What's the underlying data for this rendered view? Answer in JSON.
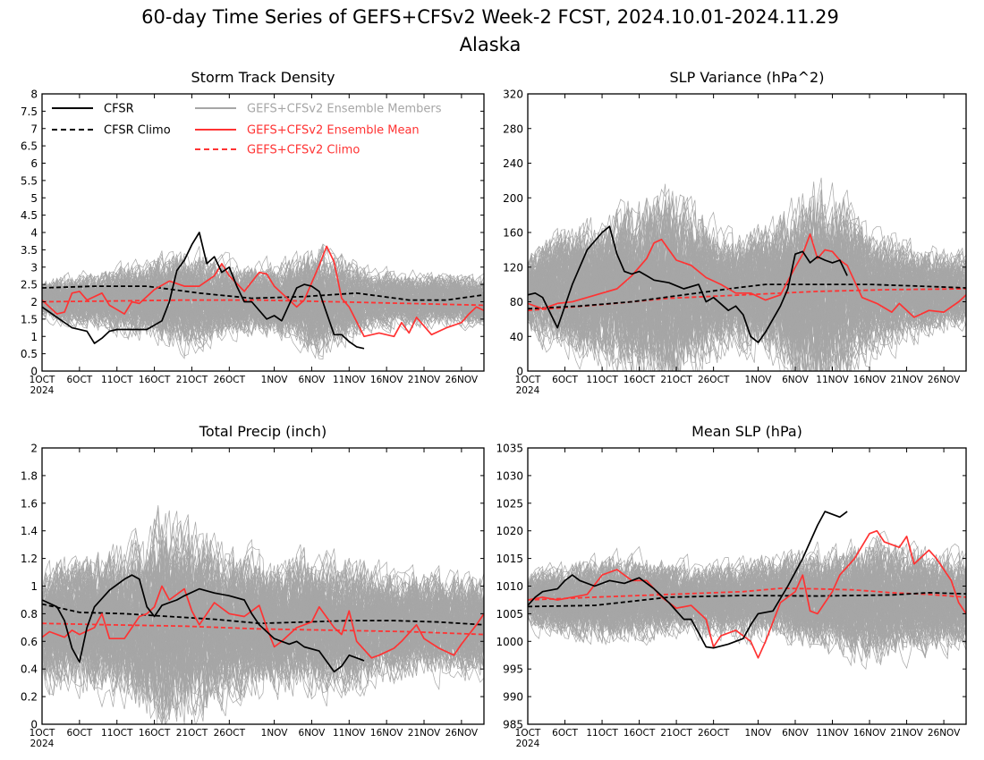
{
  "page": {
    "title": "60-day Time Series of GEFS+CFSv2 Week-2 FCST, 2024.10.01-2024.11.29",
    "subtitle": "Alaska"
  },
  "legend": [
    {
      "label": "CFSR",
      "color": "#000000",
      "dashed": false
    },
    {
      "label": "CFSR Climo",
      "color": "#000000",
      "dashed": true
    },
    {
      "label": "GEFS+CFSv2 Ensemble Members",
      "color": "#a6a6a6",
      "dashed": false
    },
    {
      "label": "GEFS+CFSv2 Ensemble Mean",
      "color": "#ff3333",
      "dashed": false
    },
    {
      "label": "GEFS+CFSv2 Climo",
      "color": "#ff3333",
      "dashed": true
    }
  ],
  "x_ticks": {
    "days": [
      1,
      6,
      11,
      16,
      21,
      26,
      32,
      37,
      42,
      47,
      52,
      57
    ],
    "labels": [
      "1OCT",
      "6OCT",
      "11OCT",
      "16OCT",
      "21OCT",
      "26OCT",
      "1NOV",
      "6NOV",
      "11NOV",
      "16NOV",
      "21NOV",
      "26NOV"
    ],
    "year_label": "2024"
  },
  "chart_data": [
    {
      "type": "line",
      "title": "Storm Track Density",
      "x_unit": "day index (1 = 1OCT 2024, 60 = 29NOV 2024)",
      "ylim": [
        0,
        8
      ],
      "yticks": [
        0,
        0.5,
        1,
        1.5,
        2,
        2.5,
        3,
        3.5,
        4,
        4.5,
        5,
        5.5,
        6,
        6.5,
        7,
        7.5,
        8
      ],
      "ytick_labels": [
        "0",
        "0.5",
        "1",
        "1.5",
        "2",
        "2.5",
        "3",
        "3.5",
        "4",
        "4.5",
        "5",
        "5.5",
        "6",
        "6.5",
        "7",
        "7.5",
        "8"
      ],
      "ensemble": {
        "center": 2.05,
        "spread": 1.3,
        "amp": [
          [
            1,
            0.7
          ],
          [
            10,
            1.0
          ],
          [
            20,
            1.6
          ],
          [
            27,
            1.1
          ],
          [
            33,
            1.2
          ],
          [
            38,
            1.8
          ],
          [
            45,
            0.9
          ],
          [
            60,
            0.8
          ]
        ]
      },
      "series": [
        {
          "name": "CFSR",
          "x": [
            1,
            3,
            5,
            7,
            8,
            9,
            10,
            11,
            13,
            15,
            17,
            18,
            19,
            20,
            21,
            22,
            23,
            24,
            25,
            26,
            27,
            28,
            29,
            31,
            32,
            33,
            35,
            36,
            37,
            38,
            40,
            41,
            42,
            43,
            44
          ],
          "values": [
            1.85,
            1.55,
            1.25,
            1.15,
            0.8,
            0.95,
            1.15,
            1.2,
            1.2,
            1.2,
            1.45,
            2.0,
            2.9,
            3.2,
            3.65,
            4.0,
            3.1,
            3.3,
            2.85,
            3.0,
            2.45,
            2.0,
            2.0,
            1.5,
            1.6,
            1.45,
            2.4,
            2.5,
            2.45,
            2.3,
            1.05,
            1.05,
            0.85,
            0.7,
            0.65
          ]
        },
        {
          "name": "CFSR Climo",
          "x": [
            1,
            8,
            15,
            22,
            29,
            36,
            43,
            50,
            55,
            60
          ],
          "values": [
            2.4,
            2.45,
            2.45,
            2.25,
            2.1,
            2.15,
            2.25,
            2.05,
            2.05,
            2.2
          ]
        },
        {
          "name": "GEFS+CFSv2 Ensemble Mean",
          "x": [
            1,
            3,
            4,
            5,
            6,
            7,
            9,
            10,
            12,
            13,
            14,
            16,
            18,
            20,
            22,
            24,
            25,
            26,
            28,
            30,
            31,
            32,
            34,
            35,
            36,
            38,
            39,
            40,
            41,
            42,
            44,
            46,
            48,
            49,
            50,
            51,
            53,
            55,
            57,
            58,
            59,
            60
          ],
          "values": [
            2.05,
            1.65,
            1.7,
            2.25,
            2.3,
            2.05,
            2.25,
            1.9,
            1.65,
            2.0,
            1.95,
            2.35,
            2.6,
            2.45,
            2.45,
            2.75,
            3.1,
            2.75,
            2.3,
            2.85,
            2.8,
            2.45,
            2.05,
            1.85,
            2.05,
            3.05,
            3.6,
            3.15,
            2.1,
            1.85,
            1.0,
            1.1,
            1.0,
            1.4,
            1.1,
            1.55,
            1.05,
            1.25,
            1.4,
            1.65,
            1.85,
            1.75
          ]
        },
        {
          "name": "GEFS+CFSv2 Climo",
          "x": [
            1,
            10,
            20,
            30,
            40,
            50,
            60
          ],
          "values": [
            2.0,
            2.02,
            2.05,
            2.05,
            2.0,
            1.95,
            1.9
          ]
        }
      ]
    },
    {
      "type": "line",
      "title": "SLP Variance (hPa^2)",
      "x_unit": "day index (1 = 1OCT 2024, 60 = 29NOV 2024)",
      "ylim": [
        0,
        320
      ],
      "yticks": [
        0,
        40,
        80,
        120,
        160,
        200,
        240,
        280,
        320
      ],
      "ytick_labels": [
        "0",
        "40",
        "80",
        "120",
        "160",
        "200",
        "240",
        "280",
        "320"
      ],
      "ensemble": {
        "center": 92,
        "spread": 1.3,
        "amp": [
          [
            1,
            60
          ],
          [
            10,
            90
          ],
          [
            20,
            130
          ],
          [
            28,
            70
          ],
          [
            34,
            90
          ],
          [
            40,
            150
          ],
          [
            47,
            75
          ],
          [
            60,
            45
          ]
        ]
      },
      "series": [
        {
          "name": "CFSR",
          "x": [
            1,
            2,
            3,
            5,
            7,
            9,
            11,
            12,
            13,
            14,
            15,
            16,
            17,
            18,
            20,
            22,
            24,
            25,
            26,
            28,
            29,
            30,
            31,
            32,
            33,
            35,
            36,
            37,
            38,
            39,
            40,
            41,
            42,
            43,
            44
          ],
          "values": [
            88,
            90,
            85,
            50,
            100,
            140,
            160,
            167,
            135,
            115,
            112,
            115,
            110,
            105,
            102,
            95,
            100,
            80,
            85,
            70,
            75,
            65,
            40,
            33,
            45,
            75,
            95,
            135,
            138,
            125,
            132,
            128,
            125,
            128,
            110
          ]
        },
        {
          "name": "CFSR Climo",
          "x": [
            1,
            8,
            15,
            22,
            29,
            33,
            40,
            47,
            54,
            60
          ],
          "values": [
            72,
            75,
            80,
            88,
            96,
            100,
            100,
            100,
            98,
            96
          ]
        },
        {
          "name": "GEFS+CFSv2 Ensemble Mean",
          "x": [
            1,
            3,
            5,
            7,
            9,
            11,
            13,
            15,
            17,
            18,
            19,
            21,
            23,
            25,
            27,
            29,
            31,
            33,
            35,
            37,
            38,
            39,
            40,
            41,
            42,
            43,
            44,
            46,
            48,
            50,
            51,
            53,
            55,
            57,
            59,
            60
          ],
          "values": [
            78,
            72,
            78,
            80,
            85,
            90,
            95,
            110,
            130,
            148,
            152,
            128,
            122,
            108,
            100,
            90,
            90,
            82,
            88,
            120,
            135,
            158,
            130,
            140,
            138,
            128,
            122,
            85,
            78,
            68,
            78,
            62,
            70,
            68,
            80,
            88
          ]
        },
        {
          "name": "GEFS+CFSv2 Climo",
          "x": [
            1,
            10,
            20,
            30,
            40,
            50,
            60
          ],
          "values": [
            70,
            76,
            84,
            88,
            92,
            94,
            95
          ]
        }
      ]
    },
    {
      "type": "line",
      "title": "Total Precip (inch)",
      "x_unit": "day index (1 = 1OCT 2024, 60 = 29NOV 2024)",
      "ylim": [
        0,
        2
      ],
      "yticks": [
        0,
        0.2,
        0.4,
        0.6,
        0.8,
        1,
        1.2,
        1.4,
        1.6,
        1.8,
        2
      ],
      "ytick_labels": [
        "0",
        "0.2",
        "0.4",
        "0.6",
        "0.8",
        "1",
        "1.2",
        "1.4",
        "1.6",
        "1.8",
        "2"
      ],
      "ensemble": {
        "center": 0.72,
        "spread": 1.3,
        "amp": [
          [
            1,
            0.5
          ],
          [
            12,
            0.6
          ],
          [
            17,
            0.9
          ],
          [
            25,
            0.6
          ],
          [
            33,
            0.55
          ],
          [
            40,
            0.55
          ],
          [
            47,
            0.45
          ],
          [
            60,
            0.4
          ]
        ]
      },
      "series": [
        {
          "name": "CFSR",
          "x": [
            1,
            3,
            4,
            5,
            6,
            7,
            8,
            10,
            12,
            13,
            14,
            15,
            16,
            17,
            18,
            19,
            20,
            22,
            24,
            26,
            28,
            29,
            30,
            32,
            33,
            34,
            35,
            36,
            38,
            40,
            41,
            42,
            43,
            44
          ],
          "values": [
            0.9,
            0.85,
            0.75,
            0.55,
            0.45,
            0.7,
            0.85,
            0.97,
            1.05,
            1.08,
            1.05,
            0.85,
            0.78,
            0.86,
            0.88,
            0.9,
            0.93,
            0.98,
            0.95,
            0.93,
            0.9,
            0.8,
            0.72,
            0.62,
            0.6,
            0.58,
            0.6,
            0.56,
            0.53,
            0.38,
            0.42,
            0.5,
            0.48,
            0.46
          ]
        },
        {
          "name": "CFSR Climo",
          "x": [
            1,
            6,
            12,
            18,
            24,
            30,
            36,
            42,
            48,
            54,
            60
          ],
          "values": [
            0.87,
            0.81,
            0.8,
            0.78,
            0.76,
            0.73,
            0.74,
            0.75,
            0.75,
            0.74,
            0.72
          ]
        },
        {
          "name": "GEFS+CFSv2 Ensemble Mean",
          "x": [
            1,
            2,
            4,
            5,
            6,
            8,
            9,
            10,
            12,
            13,
            14,
            15,
            16,
            17,
            18,
            20,
            21,
            22,
            24,
            26,
            28,
            30,
            31,
            32,
            33,
            35,
            37,
            38,
            40,
            41,
            42,
            43,
            45,
            46,
            48,
            49,
            51,
            52,
            54,
            56,
            57,
            59,
            60
          ],
          "values": [
            0.63,
            0.67,
            0.63,
            0.68,
            0.65,
            0.7,
            0.8,
            0.62,
            0.62,
            0.7,
            0.78,
            0.8,
            0.85,
            1.0,
            0.9,
            0.98,
            0.82,
            0.72,
            0.88,
            0.8,
            0.78,
            0.86,
            0.7,
            0.56,
            0.6,
            0.7,
            0.74,
            0.85,
            0.7,
            0.65,
            0.82,
            0.6,
            0.48,
            0.5,
            0.55,
            0.6,
            0.72,
            0.62,
            0.55,
            0.5,
            0.58,
            0.72,
            0.8
          ]
        },
        {
          "name": "GEFS+CFSv2 Climo",
          "x": [
            1,
            10,
            20,
            30,
            40,
            50,
            60
          ],
          "values": [
            0.73,
            0.72,
            0.71,
            0.69,
            0.68,
            0.67,
            0.65
          ]
        }
      ]
    },
    {
      "type": "line",
      "title": "Mean SLP (hPa)",
      "x_unit": "day index (1 = 1OCT 2024, 60 = 29NOV 2024)",
      "ylim": [
        985,
        1035
      ],
      "yticks": [
        985,
        990,
        995,
        1000,
        1005,
        1010,
        1015,
        1020,
        1025,
        1030,
        1035
      ],
      "ytick_labels": [
        "985",
        "990",
        "995",
        "1000",
        "1005",
        "1010",
        "1015",
        "1020",
        "1025",
        "1030",
        "1035"
      ],
      "ensemble": {
        "center": 1007.5,
        "spread": 1.3,
        "amp": [
          [
            1,
            6
          ],
          [
            12,
            9
          ],
          [
            22,
            7
          ],
          [
            30,
            8
          ],
          [
            40,
            10
          ],
          [
            47,
            12
          ],
          [
            60,
            9
          ]
        ]
      },
      "series": [
        {
          "name": "CFSR",
          "x": [
            1,
            2,
            3,
            5,
            6,
            7,
            8,
            10,
            12,
            14,
            16,
            18,
            20,
            22,
            23,
            24,
            25,
            26,
            28,
            30,
            31,
            32,
            34,
            36,
            38,
            40,
            41,
            42,
            43,
            44
          ],
          "values": [
            1006.5,
            1008,
            1009,
            1009.5,
            1011,
            1012,
            1011,
            1010,
            1011,
            1010.5,
            1011.5,
            1009.5,
            1007,
            1004,
            1004,
            1001.5,
            999,
            998.8,
            999.5,
            1000.5,
            1003,
            1005,
            1005.5,
            1010,
            1015,
            1021,
            1023.5,
            1023,
            1022.5,
            1023.5
          ]
        },
        {
          "name": "CFSR Climo",
          "x": [
            1,
            10,
            20,
            30,
            40,
            50,
            55,
            60
          ],
          "values": [
            1006.3,
            1006.5,
            1008,
            1008.3,
            1008.2,
            1008.4,
            1008.8,
            1008.6
          ]
        },
        {
          "name": "GEFS+CFSv2 Ensemble Mean",
          "x": [
            1,
            3,
            5,
            7,
            9,
            11,
            13,
            15,
            17,
            19,
            21,
            23,
            25,
            26,
            27,
            29,
            31,
            32,
            33,
            35,
            37,
            38,
            39,
            40,
            41,
            42,
            43,
            44,
            45,
            47,
            48,
            49,
            51,
            52,
            53,
            55,
            56,
            58,
            59,
            60
          ],
          "values": [
            1007.5,
            1008,
            1007.5,
            1008,
            1008.5,
            1012,
            1013,
            1011,
            1011,
            1008,
            1006,
            1006.5,
            1004,
            999,
            1001,
            1002,
            1000,
            997,
            1000,
            1007,
            1009,
            1012,
            1005.5,
            1005,
            1007,
            1009,
            1012,
            1013.5,
            1015,
            1019.5,
            1020,
            1018,
            1017,
            1019,
            1014,
            1016.5,
            1015,
            1011,
            1007,
            1005
          ]
        },
        {
          "name": "GEFS+CFSv2 Climo",
          "x": [
            1,
            10,
            20,
            30,
            35,
            40,
            45,
            50,
            55,
            60
          ],
          "values": [
            1007.5,
            1008,
            1008.5,
            1009,
            1009.6,
            1009.5,
            1009.3,
            1008.8,
            1008.5,
            1008
          ]
        }
      ]
    }
  ]
}
